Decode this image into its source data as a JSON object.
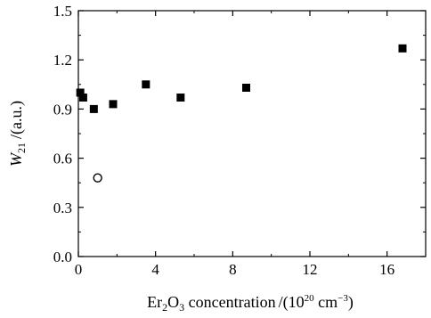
{
  "chart_data": {
    "type": "scatter",
    "title": "",
    "xlabel": {
      "prefix": "Er",
      "sub1": "2",
      "mid": "O",
      "sub2": "3",
      "text": " concentration",
      "slash": "/",
      "unit_open": "(10",
      "unit_exp": "20",
      "unit_cm": " cm",
      "unit_exp2": "−3",
      "unit_close": ")"
    },
    "ylabel": {
      "symbol": "W",
      "sub": "21",
      "unit": "/(a.u.)"
    },
    "xlim": [
      0,
      18
    ],
    "ylim": [
      0,
      1.5
    ],
    "xticks": [
      "0",
      "4",
      "8",
      "12",
      "16"
    ],
    "xtick_values": [
      0,
      4,
      8,
      12,
      16
    ],
    "yticks": [
      "0.0",
      "0.3",
      "0.6",
      "0.9",
      "1.2",
      "1.5"
    ],
    "ytick_values": [
      0.0,
      0.3,
      0.6,
      0.9,
      1.2,
      1.5
    ],
    "grid": false,
    "series": [
      {
        "marker": "filled-square",
        "color": "#000000",
        "points": [
          {
            "x": 0.1,
            "y": 1.0
          },
          {
            "x": 0.25,
            "y": 0.97
          },
          {
            "x": 0.8,
            "y": 0.9
          },
          {
            "x": 1.8,
            "y": 0.93
          },
          {
            "x": 3.5,
            "y": 1.05
          },
          {
            "x": 5.3,
            "y": 0.97
          },
          {
            "x": 8.7,
            "y": 1.03
          },
          {
            "x": 16.8,
            "y": 1.27
          }
        ]
      },
      {
        "marker": "open-circle",
        "color": "#000000",
        "points": [
          {
            "x": 1.0,
            "y": 0.48
          }
        ]
      }
    ]
  }
}
